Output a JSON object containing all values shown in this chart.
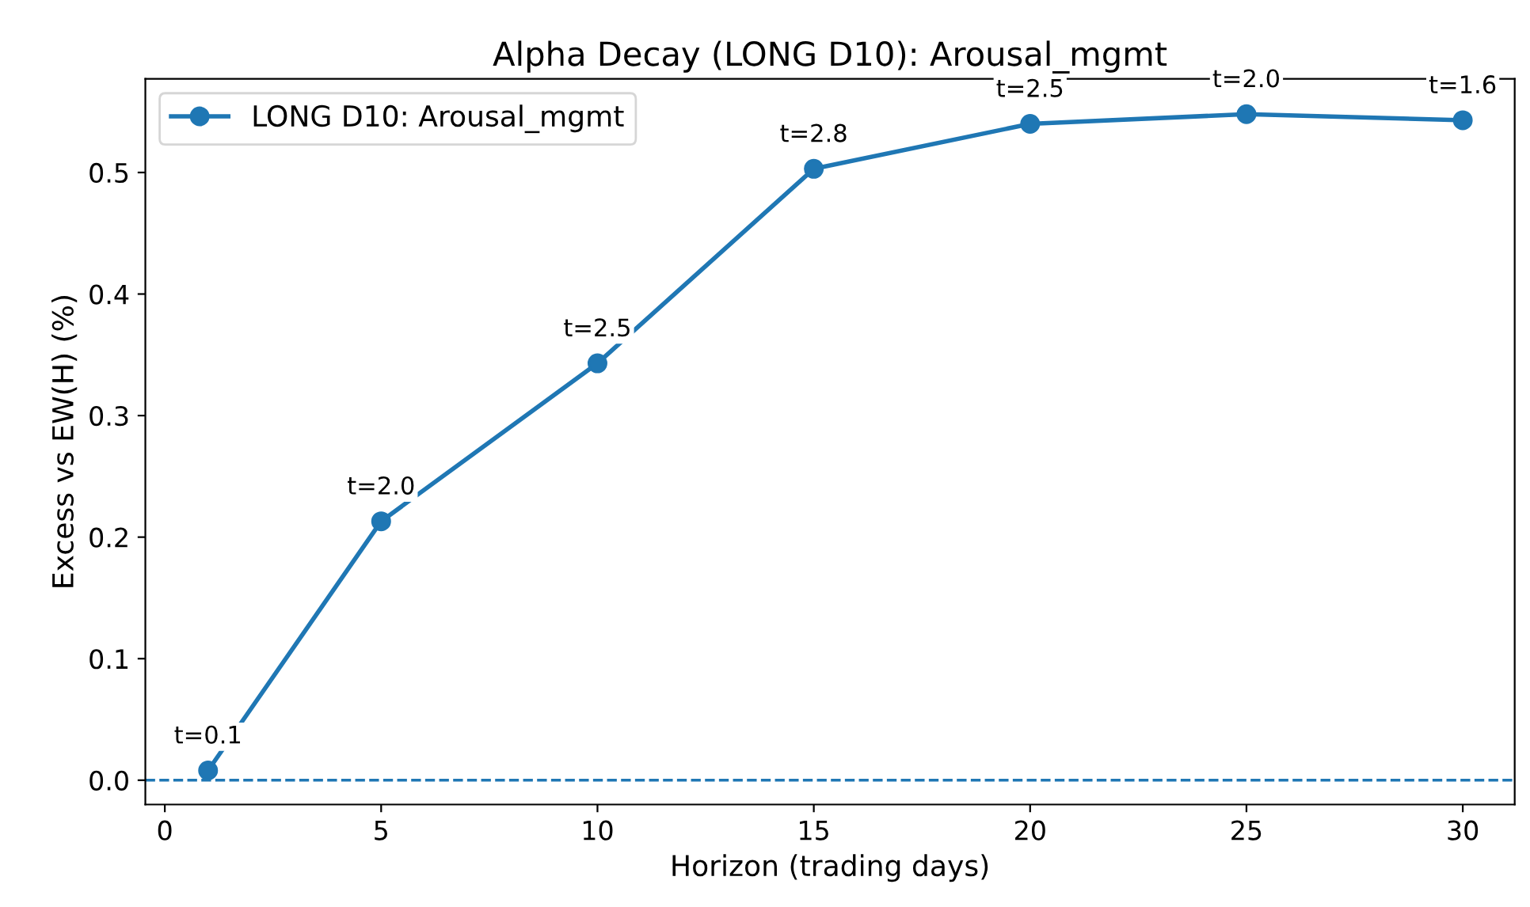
{
  "chart_data": {
    "type": "line",
    "title": "Alpha Decay (LONG D10): Arousal_mgmt",
    "xlabel": "Horizon (trading days)",
    "ylabel": "Excess vs EW(H) (%)",
    "x": [
      1,
      5,
      10,
      15,
      20,
      25,
      30
    ],
    "series": [
      {
        "name": "LONG D10: Arousal_mgmt",
        "color": "#1f77b4",
        "values": [
          0.008,
          0.213,
          0.343,
          0.503,
          0.54,
          0.548,
          0.543
        ]
      }
    ],
    "annotations": [
      {
        "text": "t=0.1",
        "x": 1,
        "y": 0.008
      },
      {
        "text": "t=2.0",
        "x": 5,
        "y": 0.213
      },
      {
        "text": "t=2.5",
        "x": 10,
        "y": 0.343
      },
      {
        "text": "t=2.8",
        "x": 15,
        "y": 0.503
      },
      {
        "text": "t=2.5",
        "x": 20,
        "y": 0.54
      },
      {
        "text": "t=2.0",
        "x": 25,
        "y": 0.548
      },
      {
        "text": "t=1.6",
        "x": 30,
        "y": 0.543
      }
    ],
    "ref_lines": [
      {
        "axis": "y",
        "value": 0,
        "color": "#1f77b4",
        "line_style": "dashed"
      }
    ],
    "xlim": [
      -0.45,
      31.2
    ],
    "ylim": [
      -0.02,
      0.577
    ],
    "xticks": [
      0,
      5,
      10,
      15,
      20,
      25,
      30
    ],
    "yticks": [
      {
        "value": 0,
        "label": "0.0"
      },
      0.1,
      0.2,
      0.3,
      0.4,
      0.5
    ],
    "marker": "circle",
    "line_style": "solid",
    "legend": "top left",
    "grid": false
  }
}
